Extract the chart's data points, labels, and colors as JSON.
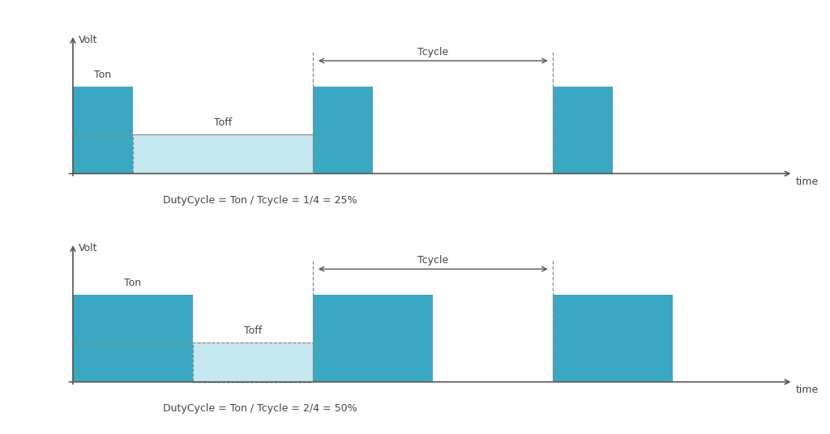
{
  "bg_color": "#ffffff",
  "pwm_high_color": "#3aa8c1",
  "pwm_low_color": "#c5e8f0",
  "axis_color": "#555555",
  "text_color": "#444444",
  "dashed_color": "#888888",
  "arrow_color": "#555555",
  "chart1": {
    "title_y": "Volt",
    "ton_label": "Ton",
    "toff_label": "Toff",
    "tcycle_label": "Tcycle",
    "time_label": "time",
    "duty_cycle_text": "DutyCycle = Ton / Tcycle = 1/4 = 25%",
    "high_level": 1.0,
    "low_level": 0.0,
    "half_level": 0.45,
    "period": 4,
    "ton": 1,
    "toff": 3
  },
  "chart2": {
    "title_y": "Volt",
    "ton_label": "Ton",
    "toff_label": "Toff",
    "tcycle_label": "Tcycle",
    "time_label": "time",
    "duty_cycle_text": "DutyCycle = Ton / Tcycle = 2/4 = 50%",
    "high_level": 1.0,
    "low_level": 0.0,
    "half_level": 0.45,
    "period": 4,
    "ton": 2,
    "toff": 2
  }
}
